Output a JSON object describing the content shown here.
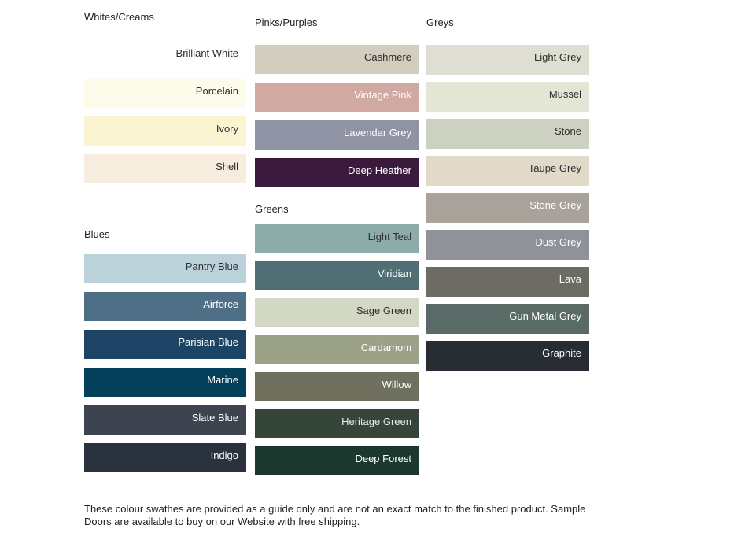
{
  "groups": [
    {
      "title": "Whites/Creams",
      "swatches": [
        {
          "name": "Brilliant White",
          "color": "#FFFFFF",
          "label_color": "#2E2E2E"
        },
        {
          "name": "Porcelain",
          "color": "#FDFBE9",
          "label_color": "#2E2E2E"
        },
        {
          "name": "Ivory",
          "color": "#FAF4D2",
          "label_color": "#2E2E2E"
        },
        {
          "name": "Shell",
          "color": "#F6EDDE",
          "label_color": "#2E2E2E"
        }
      ]
    },
    {
      "title": "Blues",
      "swatches": [
        {
          "name": "Pantry Blue",
          "color": "#BCD2DA",
          "label_color": "#2E2E2E"
        },
        {
          "name": "Airforce",
          "color": "#4E6F86",
          "label_color": "#FFFFFF"
        },
        {
          "name": "Parisian Blue",
          "color": "#1E4465",
          "label_color": "#FFFFFF"
        },
        {
          "name": "Marine",
          "color": "#04405A",
          "label_color": "#FFFFFF"
        },
        {
          "name": "Slate Blue",
          "color": "#3D4450",
          "label_color": "#FFFFFF"
        },
        {
          "name": "Indigo",
          "color": "#2A323D",
          "label_color": "#FFFFFF"
        }
      ]
    },
    {
      "title": "Pinks/Purples",
      "swatches": [
        {
          "name": "Cashmere",
          "color": "#D2CDBE",
          "label_color": "#2E2E2E"
        },
        {
          "name": "Vintage Pink",
          "color": "#D0A9A3",
          "label_color": "#FFFFFF"
        },
        {
          "name": "Lavendar Grey",
          "color": "#8F93A3",
          "label_color": "#FFFFFF"
        },
        {
          "name": "Deep Heather",
          "color": "#3A1B3D",
          "label_color": "#FFFFFF"
        }
      ]
    },
    {
      "title": "Greens",
      "swatches": [
        {
          "name": "Light Teal",
          "color": "#8BACA8",
          "label_color": "#2E2E2E"
        },
        {
          "name": "Viridian",
          "color": "#4F6F74",
          "label_color": "#FFFFFF"
        },
        {
          "name": "Sage Green",
          "color": "#D2D8C4",
          "label_color": "#2E2E2E"
        },
        {
          "name": "Cardamom",
          "color": "#9BA287",
          "label_color": "#FFFFFF"
        },
        {
          "name": "Willow",
          "color": "#6F705D",
          "label_color": "#FFFFFF"
        },
        {
          "name": "Heritage Green",
          "color": "#364539",
          "label_color": "#E9E9E9"
        },
        {
          "name": "Deep Forest",
          "color": "#1B382F",
          "label_color": "#FFFFFF"
        }
      ]
    },
    {
      "title": "Greys",
      "swatches": [
        {
          "name": "Light Grey",
          "color": "#DEDFD2",
          "label_color": "#2E2E2E"
        },
        {
          "name": "Mussel",
          "color": "#E4E6D5",
          "label_color": "#2E2E2E"
        },
        {
          "name": "Stone",
          "color": "#CDD1C1",
          "label_color": "#2E2E2E"
        },
        {
          "name": "Taupe Grey",
          "color": "#E1DAC9",
          "label_color": "#2E2E2E"
        },
        {
          "name": "Stone Grey",
          "color": "#A8A29A",
          "label_color": "#FFFFFF"
        },
        {
          "name": "Dust Grey",
          "color": "#8F9299",
          "label_color": "#FFFFFF"
        },
        {
          "name": "Lava",
          "color": "#6C6C64",
          "label_color": "#FFFFFF"
        },
        {
          "name": "Gun Metal Grey",
          "color": "#5A6B67",
          "label_color": "#FFFFFF"
        },
        {
          "name": "Graphite",
          "color": "#262C32",
          "label_color": "#FFFFFF"
        }
      ]
    }
  ],
  "footer": {
    "line1": "These colour swathes are provided as a guide only and are not an exact match to the finished product.  Sample",
    "line2": "Doors are available to buy on our Website with free shipping."
  }
}
